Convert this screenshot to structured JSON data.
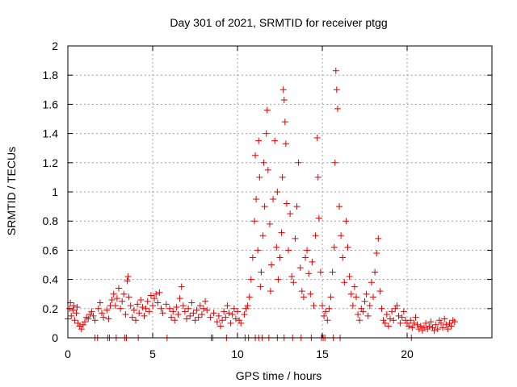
{
  "chart_data": {
    "type": "scatter",
    "title": "Day 301 of 2021, SRMTID for receiver ptgg",
    "xlabel": "GPS time / hours",
    "ylabel": "SRMTID / TECUs",
    "xlim": [
      0,
      25
    ],
    "ylim": [
      0,
      2
    ],
    "xticks": [
      0,
      5,
      10,
      15,
      20
    ],
    "yticks": [
      0,
      0.2,
      0.4,
      0.6,
      0.8,
      1,
      1.2,
      1.4,
      1.6,
      1.8,
      2
    ],
    "xtick_labels": [
      "0",
      "5",
      "10",
      "15",
      "20"
    ],
    "ytick_labels": [
      "0",
      "0.2",
      "0.4",
      "0.6",
      "0.8",
      "1",
      "1.2",
      "1.4",
      "1.6",
      "1.8",
      "2"
    ],
    "grid": true,
    "series": [
      {
        "name": "SRMTID",
        "marker": "+",
        "color": "#e00000",
        "points": [
          [
            0.0,
            0.13
          ],
          [
            0.1,
            0.2
          ],
          [
            0.15,
            0.24
          ],
          [
            0.2,
            0.15
          ],
          [
            0.3,
            0.19
          ],
          [
            0.35,
            0.22
          ],
          [
            0.4,
            0.12
          ],
          [
            0.5,
            0.17
          ],
          [
            0.55,
            0.21
          ],
          [
            0.6,
            0.1
          ],
          [
            0.7,
            0.08
          ],
          [
            0.8,
            0.06
          ],
          [
            0.9,
            0.09
          ],
          [
            1.0,
            0.11
          ],
          [
            1.1,
            0.14
          ],
          [
            1.2,
            0.13
          ],
          [
            1.3,
            0.16
          ],
          [
            1.4,
            0.18
          ],
          [
            1.5,
            0.15
          ],
          [
            1.6,
            0.12
          ],
          [
            1.8,
            0.2
          ],
          [
            1.9,
            0.24
          ],
          [
            2.0,
            0.17
          ],
          [
            2.1,
            0.14
          ],
          [
            2.3,
            0.19
          ],
          [
            2.4,
            0.13
          ],
          [
            2.5,
            0.22
          ],
          [
            2.6,
            0.26
          ],
          [
            2.7,
            0.3
          ],
          [
            2.8,
            0.22
          ],
          [
            2.9,
            0.27
          ],
          [
            3.0,
            0.34
          ],
          [
            3.1,
            0.2
          ],
          [
            3.2,
            0.25
          ],
          [
            3.3,
            0.3
          ],
          [
            3.4,
            0.16
          ],
          [
            3.5,
            0.39
          ],
          [
            3.55,
            0.42
          ],
          [
            3.6,
            0.28
          ],
          [
            3.7,
            0.22
          ],
          [
            3.8,
            0.14
          ],
          [
            3.9,
            0.19
          ],
          [
            4.0,
            0.12
          ],
          [
            4.1,
            0.23
          ],
          [
            4.2,
            0.17
          ],
          [
            4.3,
            0.26
          ],
          [
            4.4,
            0.21
          ],
          [
            4.5,
            0.15
          ],
          [
            4.6,
            0.2
          ],
          [
            4.7,
            0.25
          ],
          [
            4.8,
            0.18
          ],
          [
            4.9,
            0.29
          ],
          [
            5.0,
            0.22
          ],
          [
            5.1,
            0.27
          ],
          [
            5.2,
            0.3
          ],
          [
            5.3,
            0.24
          ],
          [
            5.4,
            0.31
          ],
          [
            5.5,
            0.2
          ],
          [
            5.6,
            0.17
          ],
          [
            5.8,
            0.23
          ],
          [
            6.0,
            0.2
          ],
          [
            6.1,
            0.14
          ],
          [
            6.2,
            0.18
          ],
          [
            6.3,
            0.12
          ],
          [
            6.4,
            0.21
          ],
          [
            6.5,
            0.16
          ],
          [
            6.6,
            0.27
          ],
          [
            6.7,
            0.35
          ],
          [
            6.8,
            0.22
          ],
          [
            6.9,
            0.18
          ],
          [
            7.0,
            0.13
          ],
          [
            7.1,
            0.2
          ],
          [
            7.2,
            0.15
          ],
          [
            7.3,
            0.24
          ],
          [
            7.4,
            0.17
          ],
          [
            7.5,
            0.12
          ],
          [
            7.6,
            0.19
          ],
          [
            7.7,
            0.14
          ],
          [
            7.8,
            0.22
          ],
          [
            7.9,
            0.16
          ],
          [
            8.0,
            0.2
          ],
          [
            8.1,
            0.25
          ],
          [
            8.2,
            0.19
          ],
          [
            8.4,
            0.14
          ],
          [
            8.6,
            0.17
          ],
          [
            8.8,
            0.11
          ],
          [
            8.9,
            0.15
          ],
          [
            9.0,
            0.08
          ],
          [
            9.1,
            0.12
          ],
          [
            9.2,
            0.18
          ],
          [
            9.3,
            0.14
          ],
          [
            9.4,
            0.22
          ],
          [
            9.5,
            0.17
          ],
          [
            9.6,
            0.1
          ],
          [
            9.7,
            0.16
          ],
          [
            9.8,
            0.2
          ],
          [
            9.9,
            0.13
          ],
          [
            10.0,
            0.18
          ],
          [
            10.1,
            0.12
          ],
          [
            10.2,
            0.1
          ],
          [
            10.4,
            0.16
          ],
          [
            10.5,
            0.2
          ],
          [
            10.6,
            0.22
          ],
          [
            10.7,
            0.28
          ],
          [
            10.8,
            0.4
          ],
          [
            10.9,
            0.55
          ],
          [
            11.0,
            0.8
          ],
          [
            11.05,
            1.25
          ],
          [
            11.1,
            0.95
          ],
          [
            11.2,
            0.6
          ],
          [
            11.25,
            1.35
          ],
          [
            11.3,
            1.1
          ],
          [
            11.35,
            0.35
          ],
          [
            11.4,
            0.45
          ],
          [
            11.5,
            0.7
          ],
          [
            11.55,
            1.2
          ],
          [
            11.6,
            0.9
          ],
          [
            11.7,
            1.4
          ],
          [
            11.75,
            1.56
          ],
          [
            11.8,
            1.15
          ],
          [
            11.9,
            0.78
          ],
          [
            11.95,
            0.32
          ],
          [
            12.0,
            0.5
          ],
          [
            12.1,
            0.95
          ],
          [
            12.2,
            1.35
          ],
          [
            12.3,
            0.62
          ],
          [
            12.35,
            1.0
          ],
          [
            12.4,
            0.4
          ],
          [
            12.5,
            0.55
          ],
          [
            12.6,
            0.72
          ],
          [
            12.65,
            1.1
          ],
          [
            12.7,
            1.7
          ],
          [
            12.75,
            1.63
          ],
          [
            12.8,
            1.48
          ],
          [
            12.85,
            1.33
          ],
          [
            12.9,
            0.92
          ],
          [
            13.0,
            0.6
          ],
          [
            13.1,
            0.85
          ],
          [
            13.2,
            0.42
          ],
          [
            13.3,
            0.38
          ],
          [
            13.4,
            0.68
          ],
          [
            13.5,
            0.9
          ],
          [
            13.6,
            1.2
          ],
          [
            13.7,
            0.48
          ],
          [
            13.8,
            0.32
          ],
          [
            13.9,
            0.28
          ],
          [
            14.0,
            0.55
          ],
          [
            14.1,
            0.6
          ],
          [
            14.2,
            0.44
          ],
          [
            14.3,
            0.3
          ],
          [
            14.4,
            0.52
          ],
          [
            14.5,
            0.22
          ],
          [
            14.6,
            0.7
          ],
          [
            14.7,
            1.37
          ],
          [
            14.75,
            1.1
          ],
          [
            14.8,
            0.82
          ],
          [
            14.9,
            0.45
          ],
          [
            15.0,
            0.22
          ],
          [
            15.1,
            0.15
          ],
          [
            15.2,
            0.18
          ],
          [
            15.3,
            0.12
          ],
          [
            15.4,
            0.2
          ],
          [
            15.5,
            0.28
          ],
          [
            15.6,
            0.45
          ],
          [
            15.7,
            0.62
          ],
          [
            15.75,
            1.2
          ],
          [
            15.8,
            1.83
          ],
          [
            15.85,
            1.7
          ],
          [
            15.9,
            1.57
          ],
          [
            16.0,
            0.9
          ],
          [
            16.1,
            0.7
          ],
          [
            16.2,
            0.55
          ],
          [
            16.3,
            0.38
          ],
          [
            16.4,
            0.8
          ],
          [
            16.5,
            0.62
          ],
          [
            16.6,
            0.42
          ],
          [
            16.7,
            0.3
          ],
          [
            16.8,
            0.22
          ],
          [
            16.9,
            0.35
          ],
          [
            17.0,
            0.28
          ],
          [
            17.1,
            0.16
          ],
          [
            17.2,
            0.12
          ],
          [
            17.3,
            0.2
          ],
          [
            17.4,
            0.18
          ],
          [
            17.5,
            0.25
          ],
          [
            17.6,
            0.3
          ],
          [
            17.7,
            0.15
          ],
          [
            17.8,
            0.22
          ],
          [
            17.9,
            0.38
          ],
          [
            18.0,
            0.28
          ],
          [
            18.1,
            0.45
          ],
          [
            18.2,
            0.58
          ],
          [
            18.3,
            0.68
          ],
          [
            18.4,
            0.32
          ],
          [
            18.5,
            0.2
          ],
          [
            18.6,
            0.12
          ],
          [
            18.7,
            0.1
          ],
          [
            18.8,
            0.16
          ],
          [
            18.9,
            0.08
          ],
          [
            19.0,
            0.13
          ],
          [
            19.1,
            0.18
          ],
          [
            19.2,
            0.12
          ],
          [
            19.3,
            0.2
          ],
          [
            19.4,
            0.22
          ],
          [
            19.5,
            0.15
          ],
          [
            19.6,
            0.1
          ],
          [
            19.7,
            0.14
          ],
          [
            19.8,
            0.18
          ],
          [
            19.9,
            0.12
          ],
          [
            20.0,
            0.1
          ],
          [
            20.1,
            0.08
          ],
          [
            20.2,
            0.12
          ],
          [
            20.3,
            0.07
          ],
          [
            20.4,
            0.1
          ],
          [
            20.5,
            0.14
          ],
          [
            20.6,
            0.09
          ],
          [
            20.7,
            0.06
          ],
          [
            20.8,
            0.08
          ],
          [
            20.9,
            0.05
          ],
          [
            21.0,
            0.07
          ],
          [
            21.1,
            0.1
          ],
          [
            21.2,
            0.06
          ],
          [
            21.3,
            0.08
          ],
          [
            21.4,
            0.11
          ],
          [
            21.5,
            0.07
          ],
          [
            21.6,
            0.05
          ],
          [
            21.7,
            0.09
          ],
          [
            21.8,
            0.06
          ],
          [
            21.9,
            0.12
          ],
          [
            22.0,
            0.1
          ],
          [
            22.1,
            0.07
          ],
          [
            22.2,
            0.13
          ],
          [
            22.3,
            0.09
          ],
          [
            22.4,
            0.06
          ],
          [
            22.5,
            0.1
          ],
          [
            22.6,
            0.08
          ],
          [
            22.7,
            0.12
          ],
          [
            22.8,
            0.11
          ],
          [
            1.6,
            0.0
          ],
          [
            1.75,
            0.0
          ],
          [
            2.35,
            0.0
          ],
          [
            2.45,
            0.0
          ],
          [
            2.85,
            0.0
          ],
          [
            3.35,
            0.0
          ],
          [
            3.45,
            0.0
          ],
          [
            4.15,
            0.0
          ],
          [
            5.85,
            0.0
          ],
          [
            8.45,
            0.0
          ],
          [
            8.55,
            0.0
          ],
          [
            9.35,
            0.0
          ],
          [
            10.45,
            0.0
          ],
          [
            10.65,
            0.0
          ],
          [
            11.05,
            0.0
          ],
          [
            11.25,
            0.0
          ],
          [
            11.45,
            0.0
          ],
          [
            11.85,
            0.0
          ],
          [
            12.35,
            0.0
          ],
          [
            12.75,
            0.0
          ],
          [
            13.25,
            0.0
          ],
          [
            13.75,
            0.0
          ],
          [
            14.35,
            0.0
          ],
          [
            14.95,
            0.0
          ],
          [
            15.05,
            0.0
          ],
          [
            15.15,
            0.0
          ],
          [
            15.65,
            0.0
          ],
          [
            16.05,
            0.0
          ],
          [
            20.25,
            0.0
          ]
        ]
      }
    ]
  }
}
